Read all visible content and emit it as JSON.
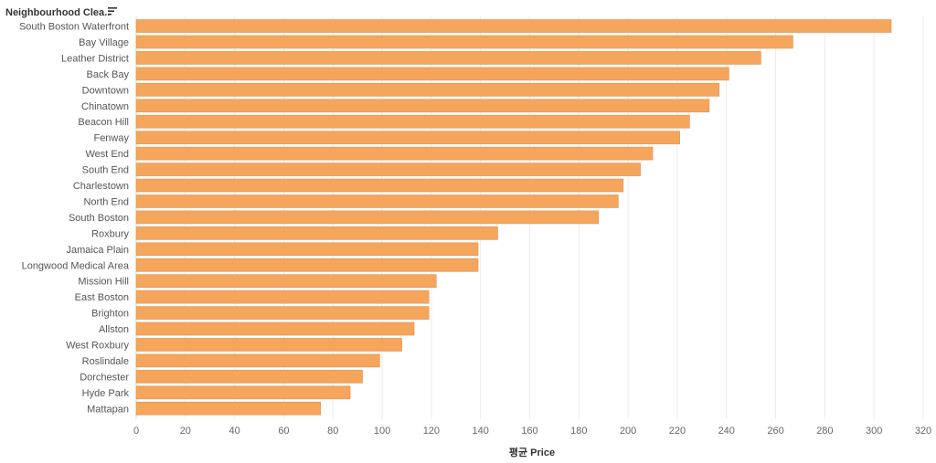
{
  "header": {
    "column_label": "Neighbourhood Clea..",
    "sort_icon": "sort-descending-icon"
  },
  "chart_data": {
    "type": "bar",
    "orientation": "horizontal",
    "xlabel": "평균 Price",
    "ylabel": "",
    "xlim": [
      0,
      320
    ],
    "xticks": [
      "0",
      "20",
      "40",
      "60",
      "80",
      "100",
      "120",
      "140",
      "160",
      "180",
      "200",
      "220",
      "240",
      "260",
      "280",
      "300",
      "320"
    ],
    "grid": true,
    "bar_color": "#F5A65C",
    "categories": [
      "South Boston Waterfront",
      "Bay Village",
      "Leather District",
      "Back Bay",
      "Downtown",
      "Chinatown",
      "Beacon Hill",
      "Fenway",
      "West End",
      "South End",
      "Charlestown",
      "North End",
      "South Boston",
      "Roxbury",
      "Jamaica Plain",
      "Longwood Medical Area",
      "Mission Hill",
      "East Boston",
      "Brighton",
      "Allston",
      "West Roxbury",
      "Roslindale",
      "Dorchester",
      "Hyde Park",
      "Mattapan"
    ],
    "values": [
      307,
      267,
      254,
      241,
      237,
      233,
      225,
      221,
      210,
      205,
      198,
      196,
      188,
      147,
      139,
      139,
      122,
      119,
      119,
      113,
      108,
      99,
      92,
      87,
      75
    ]
  }
}
